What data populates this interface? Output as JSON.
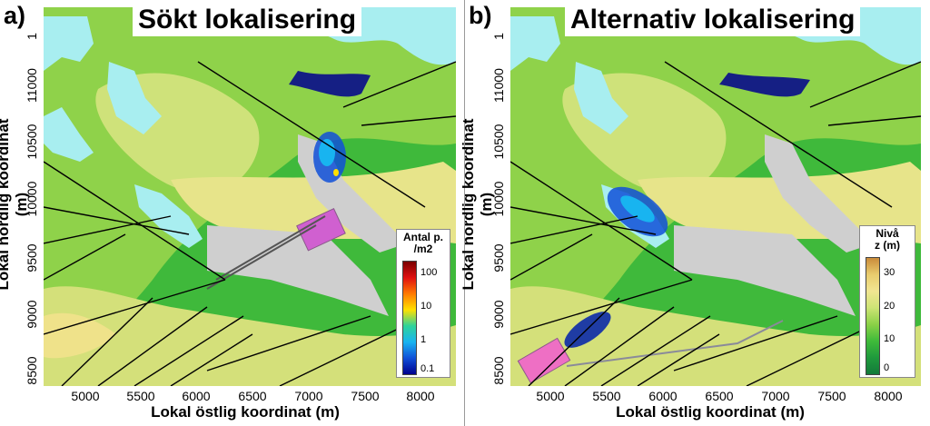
{
  "panels": [
    {
      "id": "a",
      "label": "a)",
      "title": "Sökt lokalisering"
    },
    {
      "id": "b",
      "label": "b)",
      "title": "Alternativ lokalisering"
    }
  ],
  "axes": {
    "ylabel": "Lokal nordlig koordinat (m)",
    "xlabel": "Lokal östlig koordinat (m)",
    "yticks": [
      "8500",
      "9000",
      "9500",
      "10000",
      "10500",
      "11000",
      "1"
    ],
    "xticks": [
      "5000",
      "5500",
      "6000",
      "6500",
      "7000",
      "7500",
      "8000"
    ],
    "xrange": [
      4650,
      8200
    ],
    "yrange": [
      8400,
      11650
    ]
  },
  "legend_particles": {
    "title_line1": "Antal p.",
    "title_line2": "/m2",
    "ticks": [
      "100",
      "10",
      "1",
      "0.1"
    ],
    "colors": [
      "#7a0000",
      "#e01010",
      "#ff7a00",
      "#ffe000",
      "#2ed39a",
      "#18b4f0",
      "#1050d8",
      "#00008e"
    ]
  },
  "legend_level": {
    "title_line1": "Nivå",
    "title_line2": "z (m)",
    "ticks": [
      "30",
      "20",
      "10",
      "0"
    ],
    "colors": [
      "#c98b3a",
      "#e9cc6e",
      "#f1e592",
      "#cde475",
      "#8bd147",
      "#3fbb3a",
      "#1f9a3c",
      "#137a3a"
    ]
  },
  "colors": {
    "water": "#a8eef0",
    "terrain_low": "#3fb93b",
    "terrain_mid": "#8fd24a",
    "terrain_high": "#efe58a",
    "facility": "#cfcfcf",
    "repository_a": "#d060d0",
    "repository_b": "#ee6fc4"
  }
}
